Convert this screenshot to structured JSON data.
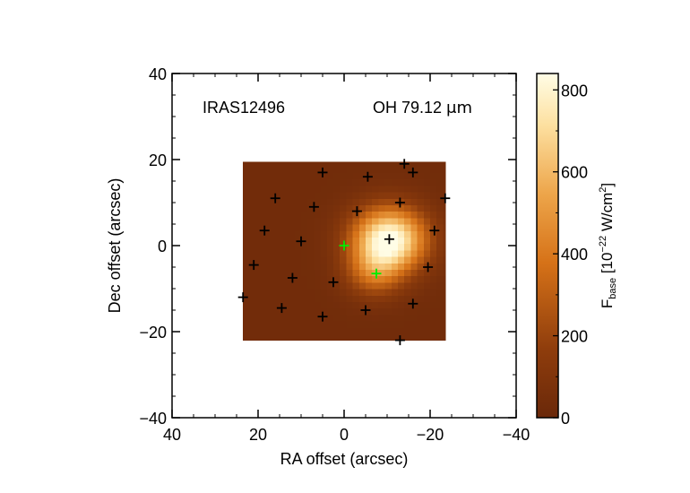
{
  "chart_data": {
    "type": "heatmap",
    "title": "",
    "annotations": {
      "source": "IRAS12496",
      "line_prefix": "OH 79.12 ",
      "line_unit": "μm"
    },
    "xlabel": "RA offset (arcsec)",
    "ylabel": "Dec offset (arcsec)",
    "xlim": [
      40,
      -40
    ],
    "ylim": [
      -40,
      40
    ],
    "x_ticks": [
      40,
      20,
      0,
      -20,
      -40
    ],
    "y_ticks": [
      -40,
      -20,
      0,
      20,
      40
    ],
    "x_tick_labels": [
      "40",
      "20",
      "0",
      "−20",
      "−40"
    ],
    "y_tick_labels": [
      "−40",
      "−20",
      "0",
      "20",
      "40"
    ],
    "map_extent": {
      "ra": [
        23.5,
        -23.5
      ],
      "dec": [
        -22,
        19.5
      ]
    },
    "background_level": 35,
    "sources": [
      {
        "ra": -10.5,
        "dec": 1.5,
        "peak": 840,
        "sigma_ra": 5.8,
        "sigma_dec": 5.0
      },
      {
        "ra": -7,
        "dec": -6,
        "peak": 280,
        "sigma_ra": 4.5,
        "sigma_dec": 4.0
      }
    ],
    "colorbar": {
      "label_prefix": "F",
      "label_sub": "base",
      "label_units": " [10",
      "label_exp": "−22",
      "label_units2": " W/cm",
      "label_exp2": "2",
      "label_close": "]",
      "range": [
        0,
        840
      ],
      "ticks": [
        0,
        200,
        400,
        600,
        800
      ],
      "tick_labels": [
        "0",
        "200",
        "400",
        "600",
        "800"
      ]
    },
    "markers_black": [
      [
        -14,
        19
      ],
      [
        5,
        17
      ],
      [
        -5.5,
        16
      ],
      [
        -16,
        17
      ],
      [
        16,
        11
      ],
      [
        7,
        9
      ],
      [
        -3,
        8
      ],
      [
        -13,
        10
      ],
      [
        -23.5,
        11
      ],
      [
        18.5,
        3.5
      ],
      [
        10,
        1
      ],
      [
        -10.5,
        1.5
      ],
      [
        -21,
        3.5
      ],
      [
        21,
        -4.5
      ],
      [
        12,
        -7.5
      ],
      [
        2.5,
        -8.5
      ],
      [
        -19.5,
        -5
      ],
      [
        23.5,
        -12
      ],
      [
        14.5,
        -14.5
      ],
      [
        5,
        -16.5
      ],
      [
        -5,
        -15
      ],
      [
        -16,
        -13.5
      ],
      [
        -13,
        -22
      ]
    ],
    "markers_green": [
      [
        0,
        0
      ],
      [
        -7.5,
        -6.5
      ]
    ]
  }
}
